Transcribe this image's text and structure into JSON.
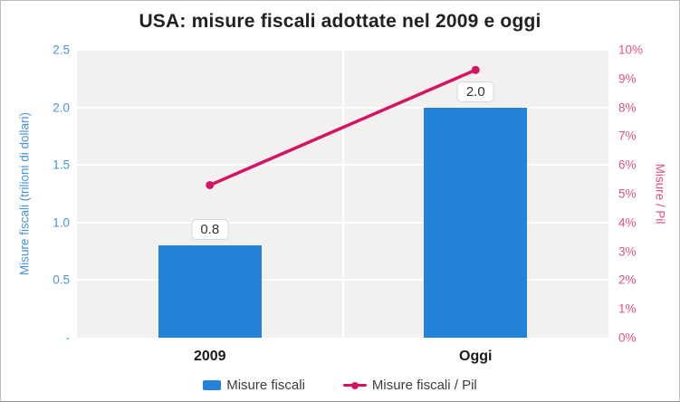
{
  "chart_data": {
    "type": "bar",
    "title": "USA: misure fiscali adottate nel 2009 e oggi",
    "categories": [
      "2009",
      "Oggi"
    ],
    "series": [
      {
        "name": "Misure fiscali",
        "type": "bar",
        "axis": "left",
        "values": [
          0.8,
          2.0
        ],
        "value_labels": [
          "0.8",
          "2.0"
        ],
        "color": "#2383d8"
      },
      {
        "name": "Misure fiscali / Pil",
        "type": "line",
        "axis": "right",
        "values": [
          5.3,
          9.3
        ],
        "color": "#d31663"
      }
    ],
    "left_axis": {
      "title": "Misure fiscali (trilioni di dollari)",
      "min": 0,
      "max": 2.5,
      "ticks": [
        "2.5",
        "2.0",
        "1.5",
        "1.0",
        "0.5",
        "-"
      ],
      "color": "#4a94dc"
    },
    "right_axis": {
      "title": "Misure / Pil",
      "min": 0,
      "max": 10,
      "ticks": [
        "10%",
        "9%",
        "8%",
        "7%",
        "6%",
        "5%",
        "4%",
        "3%",
        "2%",
        "1%",
        "0%"
      ],
      "color": "#e25182"
    },
    "grid": true,
    "legend_position": "bottom",
    "plot_background": "#f2f1ef"
  }
}
